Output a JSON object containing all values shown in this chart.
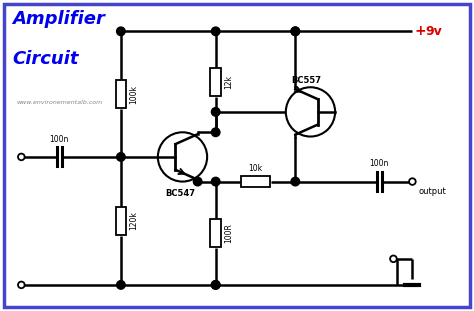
{
  "title_line1": "Amplifier",
  "title_line2": "Circuit",
  "title_color": "#0000EE",
  "bg_color": "#FFFFFF",
  "border_color": "#4444CC",
  "wire_color": "#000000",
  "supply_label": "9v",
  "supply_color": "#DD0000",
  "website": "www.environementalb.com",
  "R1": "100k",
  "R2": "120k",
  "R3": "12k",
  "R4": "100R",
  "R5": "10k",
  "C1": "100n",
  "C2": "100n",
  "Q1": "BC547",
  "Q2": "BC557"
}
